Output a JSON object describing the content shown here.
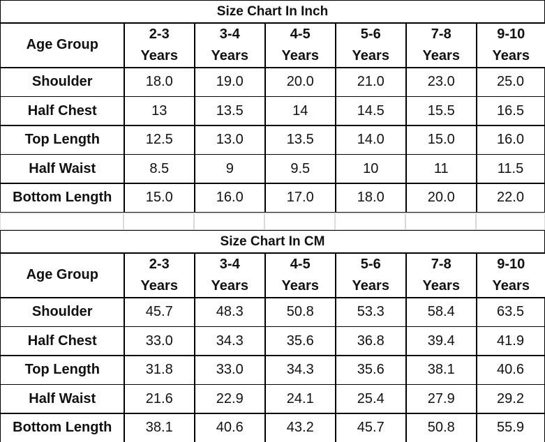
{
  "tables": [
    {
      "title": "Size Chart In Inch",
      "header": [
        "Age Group",
        "2-3\nYears",
        "3-4\nYears",
        "4-5\nYears",
        "5-6\nYears",
        "7-8\nYears",
        "9-10\nYears"
      ],
      "rows": [
        [
          "Shoulder",
          "18.0",
          "19.0",
          "20.0",
          "21.0",
          "23.0",
          "25.0"
        ],
        [
          "Half Chest",
          "13",
          "13.5",
          "14",
          "14.5",
          "15.5",
          "16.5"
        ],
        [
          "Top Length",
          "12.5",
          "13.0",
          "13.5",
          "14.0",
          "15.0",
          "16.0"
        ],
        [
          "Half Waist",
          "8.5",
          "9",
          "9.5",
          "10",
          "11",
          "11.5"
        ],
        [
          "Bottom Length",
          "15.0",
          "16.0",
          "17.0",
          "18.0",
          "20.0",
          "22.0"
        ]
      ]
    },
    {
      "title": "Size Chart In CM",
      "header": [
        "Age Group",
        "2-3\nYears",
        "3-4\nYears",
        "4-5\nYears",
        "5-6\nYears",
        "7-8\nYears",
        "9-10\nYears"
      ],
      "rows": [
        [
          "Shoulder",
          "45.7",
          "48.3",
          "50.8",
          "53.3",
          "58.4",
          "63.5"
        ],
        [
          "Half Chest",
          "33.0",
          "34.3",
          "35.6",
          "36.8",
          "39.4",
          "41.9"
        ],
        [
          "Top Length",
          "31.8",
          "33.0",
          "34.3",
          "35.6",
          "38.1",
          "40.6"
        ],
        [
          "Half Waist",
          "21.6",
          "22.9",
          "24.1",
          "25.4",
          "27.9",
          "29.2"
        ],
        [
          "Bottom Length",
          "38.1",
          "40.6",
          "43.2",
          "45.7",
          "50.8",
          "55.9"
        ]
      ]
    }
  ]
}
